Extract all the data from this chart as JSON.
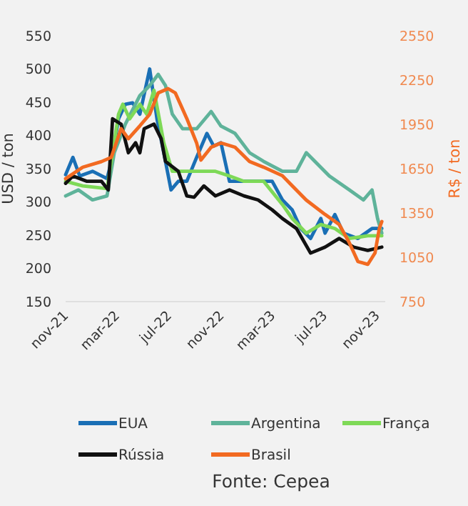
{
  "chart_data": {
    "type": "line",
    "ylabel": "USD / ton",
    "y2label": "R$ / ton",
    "xlim": [
      "2021-11-01",
      "2023-11-20"
    ],
    "xticks": [
      {
        "value": "2021-11-01",
        "label": "nov-21"
      },
      {
        "value": "2022-03-01",
        "label": "mar-22"
      },
      {
        "value": "2022-07-01",
        "label": "jul-22"
      },
      {
        "value": "2022-11-01",
        "label": "nov-22"
      },
      {
        "value": "2023-03-01",
        "label": "mar-23"
      },
      {
        "value": "2023-07-01",
        "label": "jul-23"
      },
      {
        "value": "2023-11-01",
        "label": "nov-23"
      }
    ],
    "ylim": [
      150,
      550
    ],
    "yticks": [
      150,
      200,
      250,
      300,
      350,
      400,
      450,
      500,
      550
    ],
    "y2lim": [
      750,
      2550
    ],
    "y2ticks": [
      750,
      1050,
      1350,
      1650,
      1950,
      2250,
      2550
    ],
    "grid": false,
    "legend": "bottom",
    "line_style": "solid",
    "marker": "none",
    "annotations": [
      "Fonte: Cepea"
    ],
    "series": [
      {
        "name": "EUA",
        "color": "#1a6fb5",
        "x": [
          "2021-11-01",
          "2021-11-18",
          "2021-12-04",
          "2022-01-03",
          "2022-02-06",
          "2022-02-16",
          "2022-03-05",
          "2022-03-21",
          "2022-04-07",
          "2022-04-24",
          "2022-05-17",
          "2022-06-03",
          "2022-06-19",
          "2022-07-06",
          "2022-07-23",
          "2022-08-12",
          "2022-09-04",
          "2022-09-28",
          "2022-10-14",
          "2022-10-31",
          "2022-11-20",
          "2022-12-24",
          "2023-01-26",
          "2023-02-28",
          "2023-03-24",
          "2023-04-16",
          "2023-05-06",
          "2023-05-29",
          "2023-06-22",
          "2023-07-02",
          "2023-07-25",
          "2023-08-14",
          "2023-09-17",
          "2023-10-20",
          "2023-11-12"
        ],
        "values": [
          341,
          367,
          339,
          346,
          335,
          360,
          425,
          447,
          449,
          432,
          500,
          425,
          374,
          318,
          331,
          331,
          367,
          403,
          384,
          389,
          331,
          331,
          331,
          331,
          303,
          288,
          260,
          245,
          275,
          253,
          281,
          253,
          245,
          260,
          260
        ]
      },
      {
        "name": "Argentina",
        "color": "#5fb39a",
        "x": [
          "2021-11-01",
          "2021-12-01",
          "2022-01-03",
          "2022-02-06",
          "2022-02-23",
          "2022-03-21",
          "2022-04-24",
          "2022-05-17",
          "2022-06-06",
          "2022-06-23",
          "2022-07-09",
          "2022-08-02",
          "2022-09-04",
          "2022-10-08",
          "2022-10-31",
          "2022-12-03",
          "2023-01-06",
          "2023-02-08",
          "2023-03-24",
          "2023-04-26",
          "2023-05-19",
          "2023-06-08",
          "2023-07-12",
          "2023-08-28",
          "2023-09-30",
          "2023-10-20",
          "2023-11-02",
          "2023-11-12"
        ],
        "values": [
          309,
          318,
          303,
          309,
          374,
          417,
          460,
          475,
          492,
          475,
          432,
          410,
          410,
          436,
          414,
          403,
          374,
          361,
          346,
          346,
          374,
          361,
          339,
          318,
          303,
          318,
          275,
          253
        ]
      },
      {
        "name": "França",
        "color": "#7ed957",
        "x": [
          "2021-11-01",
          "2021-12-11",
          "2022-02-06",
          "2022-03-05",
          "2022-03-15",
          "2022-03-31",
          "2022-04-24",
          "2022-05-10",
          "2022-05-27",
          "2022-06-19",
          "2022-07-09",
          "2022-08-12",
          "2022-09-14",
          "2022-10-18",
          "2022-11-20",
          "2022-12-24",
          "2023-02-08",
          "2023-03-24",
          "2023-04-16",
          "2023-05-19",
          "2023-06-22",
          "2023-07-25",
          "2023-08-28",
          "2023-10-10",
          "2023-11-12"
        ],
        "values": [
          331,
          324,
          320,
          432,
          447,
          425,
          447,
          432,
          468,
          389,
          346,
          346,
          346,
          346,
          339,
          331,
          331,
          296,
          275,
          253,
          266,
          260,
          245,
          249,
          249
        ]
      },
      {
        "name": "Rússia",
        "color": "#111111",
        "x": [
          "2021-11-01",
          "2021-11-18",
          "2021-12-21",
          "2022-01-24",
          "2022-02-09",
          "2022-02-19",
          "2022-03-11",
          "2022-03-28",
          "2022-04-14",
          "2022-04-24",
          "2022-05-04",
          "2022-05-27",
          "2022-06-13",
          "2022-06-23",
          "2022-07-23",
          "2022-08-12",
          "2022-08-29",
          "2022-09-21",
          "2022-10-18",
          "2022-11-20",
          "2022-12-24",
          "2023-01-26",
          "2023-02-28",
          "2023-03-24",
          "2023-04-26",
          "2023-05-29",
          "2023-07-02",
          "2023-08-04",
          "2023-09-07",
          "2023-10-10",
          "2023-11-12"
        ],
        "values": [
          328,
          339,
          331,
          331,
          318,
          425,
          417,
          374,
          389,
          374,
          410,
          417,
          395,
          361,
          346,
          309,
          307,
          324,
          309,
          318,
          309,
          303,
          288,
          275,
          260,
          223,
          232,
          245,
          232,
          227,
          232
        ]
      },
      {
        "name": "Brasil",
        "color": "#f26a21",
        "axis": "y2",
        "x": [
          "2021-11-01",
          "2021-12-11",
          "2022-01-24",
          "2022-02-16",
          "2022-03-11",
          "2022-03-28",
          "2022-04-24",
          "2022-05-17",
          "2022-06-06",
          "2022-06-29",
          "2022-07-16",
          "2022-08-12",
          "2022-09-04",
          "2022-09-14",
          "2022-10-08",
          "2022-10-31",
          "2022-12-03",
          "2023-01-06",
          "2023-02-08",
          "2023-03-24",
          "2023-04-16",
          "2023-05-19",
          "2023-07-02",
          "2023-08-04",
          "2023-08-28",
          "2023-09-17",
          "2023-10-10",
          "2023-10-27",
          "2023-11-06",
          "2023-11-12"
        ],
        "values": [
          1582,
          1660,
          1698,
          1727,
          1921,
          1853,
          1940,
          2018,
          2163,
          2192,
          2163,
          1989,
          1824,
          1708,
          1795,
          1824,
          1795,
          1698,
          1660,
          1602,
          1534,
          1437,
          1340,
          1273,
          1147,
          1021,
          1002,
          1079,
          1244,
          1292
        ]
      }
    ]
  }
}
